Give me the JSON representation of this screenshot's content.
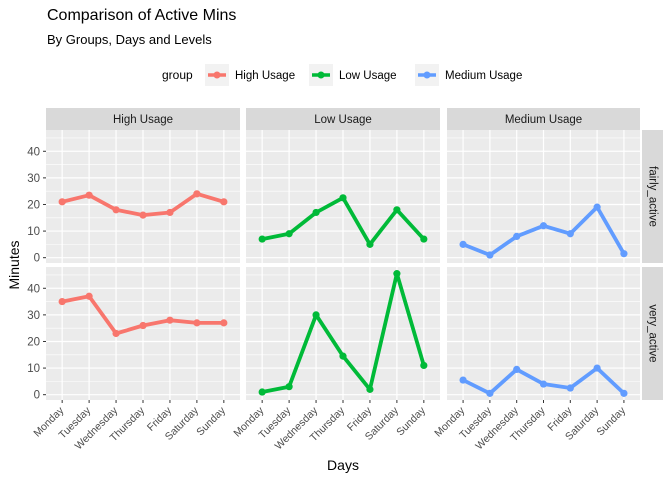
{
  "title": "Comparison of Active Mins",
  "subtitle": "By Groups, Days and Levels",
  "legend": {
    "title": "group",
    "items": [
      "High Usage",
      "Low Usage",
      "Medium Usage"
    ],
    "position": "top"
  },
  "colors": {
    "High Usage": "#F8766D",
    "Low Usage": "#00BA38",
    "Medium Usage": "#619CFF",
    "panel_bg": "#EBEBEB",
    "strip_bg": "#D9D9D9",
    "grid": "#ffffff"
  },
  "chart_data": {
    "type": "line",
    "facets": {
      "columns": [
        "High Usage",
        "Low Usage",
        "Medium Usage"
      ],
      "rows": [
        "fairly_active",
        "very_active"
      ]
    },
    "categories": [
      "Monday",
      "Tuesday",
      "Wednesday",
      "Thursday",
      "Friday",
      "Saturday",
      "Sunday"
    ],
    "xlabel": "Days",
    "ylabel": "Minutes",
    "ylim": [
      -2,
      48
    ],
    "yticks": [
      0,
      10,
      20,
      30,
      40
    ],
    "grid": true,
    "series": [
      {
        "name": "High Usage",
        "level": "fairly_active",
        "values": [
          21,
          23.5,
          18,
          16,
          17,
          24,
          21
        ]
      },
      {
        "name": "Low Usage",
        "level": "fairly_active",
        "values": [
          7,
          9,
          17,
          22.5,
          5,
          18,
          7
        ]
      },
      {
        "name": "Medium Usage",
        "level": "fairly_active",
        "values": [
          5,
          1,
          8,
          12,
          9,
          19,
          1.5
        ]
      },
      {
        "name": "High Usage",
        "level": "very_active",
        "values": [
          35,
          37,
          23,
          26,
          28,
          27,
          27
        ]
      },
      {
        "name": "Low Usage",
        "level": "very_active",
        "values": [
          1,
          3,
          30,
          14.5,
          2,
          45.5,
          11
        ]
      },
      {
        "name": "Medium Usage",
        "level": "very_active",
        "values": [
          5.5,
          0.5,
          9.5,
          4,
          2.5,
          10,
          0.5
        ]
      }
    ]
  }
}
